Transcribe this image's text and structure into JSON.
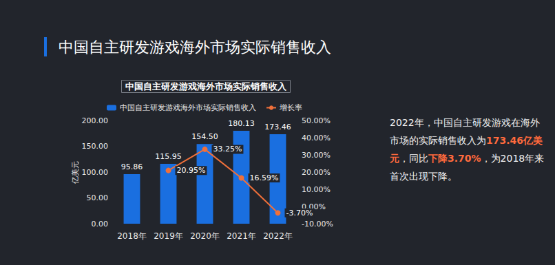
{
  "chart_data": {
    "type": "bar",
    "title": "中国自主研发游戏海外市场实际销售收入",
    "subtitle": "中国自主研发游戏海外市场实际销售收入",
    "y_label": "亿美元",
    "categories": [
      "2018年",
      "2019年",
      "2020年",
      "2021年",
      "2022年"
    ],
    "series": [
      {
        "name": "中国自主研发游戏海外市场实际销售收入",
        "type": "bar",
        "color": "#1a6fe0",
        "values": [
          95.86,
          115.95,
          154.5,
          180.13,
          173.46
        ],
        "value_labels": [
          "95.86",
          "115.95",
          "154.50",
          "180.13",
          "173.46"
        ]
      },
      {
        "name": "增长率",
        "type": "line",
        "axis": "y2",
        "color": "#f0703a",
        "marker": "circle",
        "values": [
          null,
          20.95,
          33.25,
          16.59,
          -3.7
        ],
        "value_labels": [
          null,
          "20.95%",
          "33.25%",
          "16.59%",
          "-3.70%"
        ]
      }
    ],
    "ylim": [
      0,
      200
    ],
    "yticks": [
      {
        "value": 0,
        "label": "0.00"
      },
      {
        "value": 50,
        "label": "50.00"
      },
      {
        "value": 100,
        "label": "100.00"
      },
      {
        "value": 150,
        "label": "150.00"
      },
      {
        "value": 200,
        "label": "200.00"
      }
    ],
    "y2lim": [
      -10,
      50
    ],
    "y2ticks": [
      {
        "value": -10,
        "label": "-10.00%"
      },
      {
        "value": 0,
        "label": "0.00%"
      },
      {
        "value": 10,
        "label": "10.00%"
      },
      {
        "value": 20,
        "label": "20.00%"
      },
      {
        "value": 30,
        "label": "30.00%"
      },
      {
        "value": 40,
        "label": "40.00%"
      },
      {
        "value": 50,
        "label": "50.00%"
      }
    ],
    "grid": false,
    "legend": "top",
    "data_labels": true,
    "annotation": [
      "2022年，中国自主研发游戏在海外市场的实际销售收入为",
      "173.46亿美元",
      "，同比",
      "下降3.70%",
      "，为2018年来首次出现下降。"
    ]
  }
}
